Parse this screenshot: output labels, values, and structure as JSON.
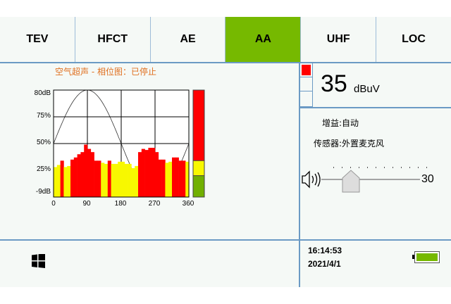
{
  "tabs": [
    {
      "label": "TEV",
      "active": false
    },
    {
      "label": "HFCT",
      "active": false
    },
    {
      "label": "AE",
      "active": false
    },
    {
      "label": "AA",
      "active": true
    },
    {
      "label": "UHF",
      "active": false
    },
    {
      "label": "LOC",
      "active": false
    }
  ],
  "colors": {
    "accent": "#76b900",
    "border": "#6b9ac4",
    "title": "#e07020",
    "red": "#ff0000",
    "yellow": "#f8f800",
    "green": "#70b000"
  },
  "chart_title": "空气超声 - 相位图：已停止",
  "chart_data": {
    "type": "bar",
    "title": "空气超声 - 相位图：已停止",
    "y_tick_labels": [
      "80dB",
      "75%",
      "50%",
      "25%",
      "-9dB"
    ],
    "x_tick_labels": [
      "0",
      "90",
      "180",
      "270",
      "360"
    ],
    "xlim": [
      0,
      360
    ],
    "ylim_percent": [
      0,
      100
    ],
    "grid": true,
    "bins_degrees": 9,
    "values": [
      28,
      30,
      34,
      28,
      29,
      35,
      37,
      40,
      42,
      49,
      45,
      42,
      34,
      34,
      32,
      31,
      34,
      31,
      31,
      33,
      33,
      31,
      31,
      27,
      29,
      42,
      45,
      44,
      46,
      46,
      42,
      35,
      35,
      32,
      33,
      37,
      37,
      34,
      34,
      33
    ],
    "colors": [
      "yellow",
      "yellow",
      "red",
      "yellow",
      "yellow",
      "red",
      "red",
      "red",
      "red",
      "red",
      "red",
      "red",
      "red",
      "red",
      "yellow",
      "yellow",
      "red",
      "yellow",
      "yellow",
      "yellow",
      "yellow",
      "yellow",
      "yellow",
      "yellow",
      "yellow",
      "red",
      "red",
      "red",
      "red",
      "red",
      "red",
      "red",
      "red",
      "yellow",
      "yellow",
      "red",
      "red",
      "red",
      "red",
      "yellow"
    ],
    "reference_curve": {
      "type": "sine",
      "offset_percent": 50,
      "amplitude_percent": 50
    },
    "level_bar": {
      "green_percent": 20,
      "yellow_percent": 34
    }
  },
  "reading": {
    "value": "35",
    "unit": "dBuV",
    "indicator": "red"
  },
  "gain": "增益:自动",
  "sensor": "传感器:外置麦克风",
  "volume": {
    "value": "30",
    "level_percent": 30
  },
  "status": {
    "time": "16:14:53",
    "date": "2021/4/1",
    "battery_percent": 100
  }
}
